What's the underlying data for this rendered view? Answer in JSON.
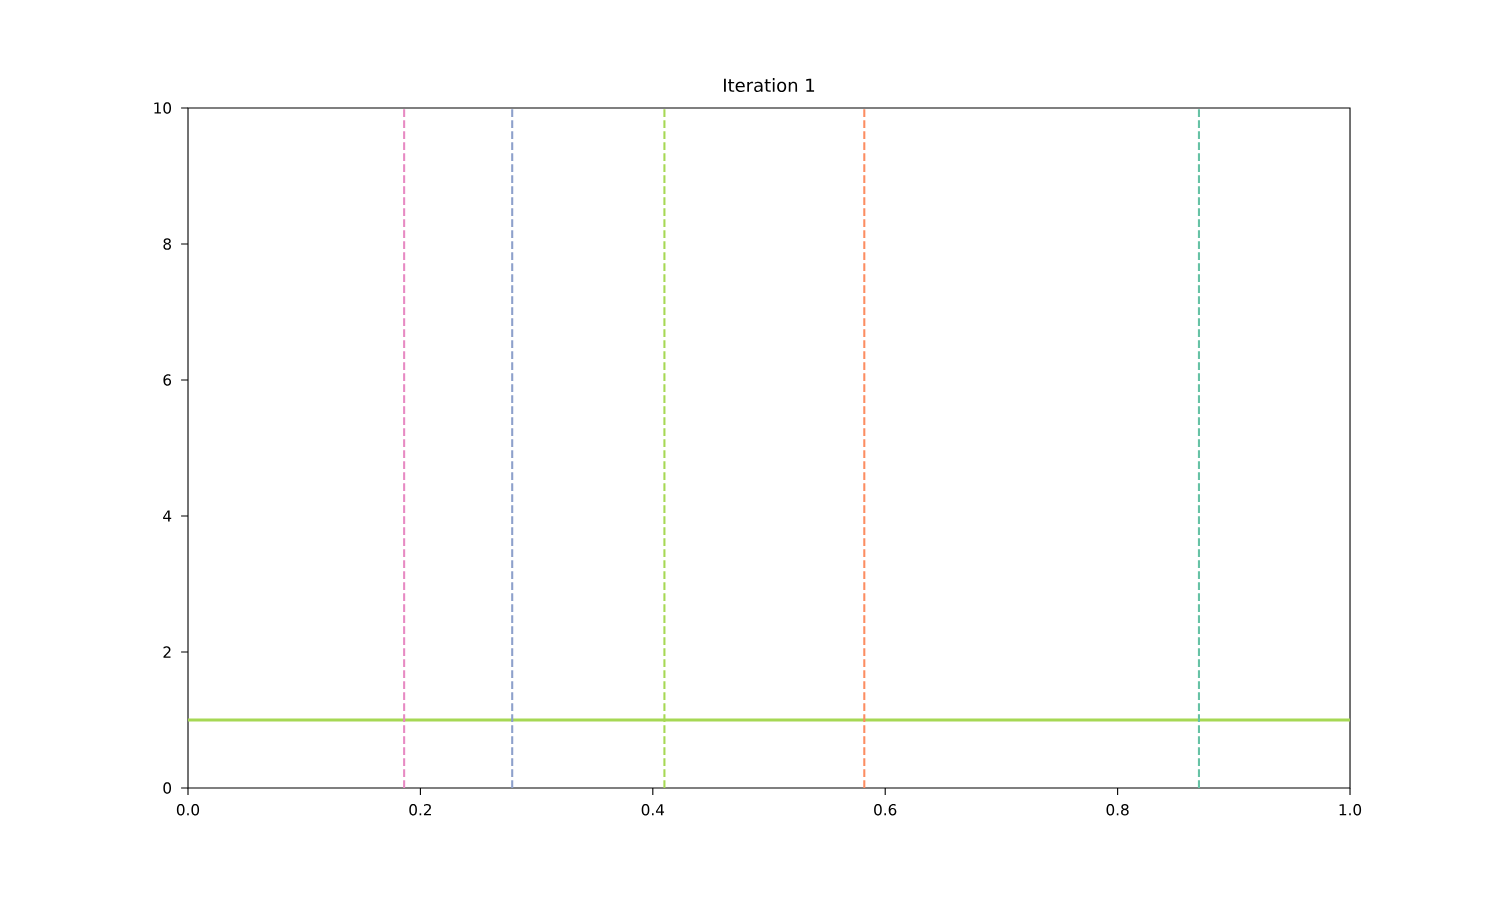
{
  "chart_data": {
    "type": "line",
    "title": "Iteration 1",
    "series": [
      {
        "x": [
          0,
          1
        ],
        "values": [
          1,
          1
        ],
        "color": "#a6d854"
      }
    ],
    "xlim": [
      0,
      1
    ],
    "ylim": [
      0,
      10
    ],
    "xticks": [
      {
        "value": 0,
        "label": "0.0"
      },
      0.2,
      0.4,
      0.6,
      0.8,
      {
        "value": 1,
        "label": "1.0"
      }
    ],
    "yticks": [
      0,
      2,
      4,
      6,
      8,
      10
    ],
    "ref_lines": [
      {
        "axis": "x",
        "value": 0.186,
        "color": "#e78ac3",
        "line_style": "dashed"
      },
      {
        "axis": "x",
        "value": 0.279,
        "color": "#8da0cb",
        "line_style": "dashed"
      },
      {
        "axis": "x",
        "value": 0.41,
        "color": "#a6d854",
        "line_style": "dashed"
      },
      {
        "axis": "x",
        "value": 0.582,
        "color": "#fc8d62",
        "line_style": "dashed"
      },
      {
        "axis": "x",
        "value": 0.87,
        "color": "#66c2a5",
        "line_style": "dashed"
      }
    ]
  }
}
